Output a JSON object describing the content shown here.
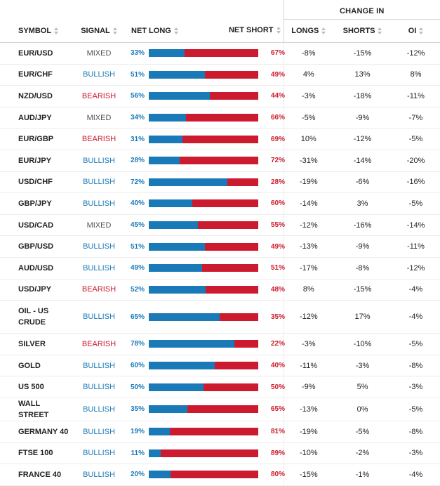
{
  "header": {
    "group_label": "CHANGE IN",
    "symbol": "SYMBOL",
    "signal": "SIGNAL",
    "net_long": "NET LONG",
    "net_short": "NET SHORT",
    "longs": "LONGS",
    "shorts": "SHORTS",
    "oi": "OI"
  },
  "colors": {
    "long": "#1a7ab8",
    "short": "#cc1b2e",
    "mixed": "#555555"
  },
  "rows": [
    {
      "symbol": "EUR/USD",
      "signal": "MIXED",
      "net_long": "33%",
      "net_short": "67%",
      "long_fraction": 0.33,
      "longs": "-8%",
      "shorts": "-15%",
      "oi": "-12%"
    },
    {
      "symbol": "EUR/CHF",
      "signal": "BULLISH",
      "net_long": "51%",
      "net_short": "49%",
      "long_fraction": 0.51,
      "longs": "4%",
      "shorts": "13%",
      "oi": "8%"
    },
    {
      "symbol": "NZD/USD",
      "signal": "BEARISH",
      "net_long": "56%",
      "net_short": "44%",
      "long_fraction": 0.56,
      "longs": "-3%",
      "shorts": "-18%",
      "oi": "-11%"
    },
    {
      "symbol": "AUD/JPY",
      "signal": "MIXED",
      "net_long": "34%",
      "net_short": "66%",
      "long_fraction": 0.34,
      "longs": "-5%",
      "shorts": "-9%",
      "oi": "-7%"
    },
    {
      "symbol": "EUR/GBP",
      "signal": "BEARISH",
      "net_long": "31%",
      "net_short": "69%",
      "long_fraction": 0.31,
      "longs": "10%",
      "shorts": "-12%",
      "oi": "-5%"
    },
    {
      "symbol": "EUR/JPY",
      "signal": "BULLISH",
      "net_long": "28%",
      "net_short": "72%",
      "long_fraction": 0.28,
      "longs": "-31%",
      "shorts": "-14%",
      "oi": "-20%"
    },
    {
      "symbol": "USD/CHF",
      "signal": "BULLISH",
      "net_long": "72%",
      "net_short": "28%",
      "long_fraction": 0.72,
      "longs": "-19%",
      "shorts": "-6%",
      "oi": "-16%"
    },
    {
      "symbol": "GBP/JPY",
      "signal": "BULLISH",
      "net_long": "40%",
      "net_short": "60%",
      "long_fraction": 0.4,
      "longs": "-14%",
      "shorts": "3%",
      "oi": "-5%"
    },
    {
      "symbol": "USD/CAD",
      "signal": "MIXED",
      "net_long": "45%",
      "net_short": "55%",
      "long_fraction": 0.45,
      "longs": "-12%",
      "shorts": "-16%",
      "oi": "-14%"
    },
    {
      "symbol": "GBP/USD",
      "signal": "BULLISH",
      "net_long": "51%",
      "net_short": "49%",
      "long_fraction": 0.51,
      "longs": "-13%",
      "shorts": "-9%",
      "oi": "-11%"
    },
    {
      "symbol": "AUD/USD",
      "signal": "BULLISH",
      "net_long": "49%",
      "net_short": "51%",
      "long_fraction": 0.49,
      "longs": "-17%",
      "shorts": "-8%",
      "oi": "-12%"
    },
    {
      "symbol": "USD/JPY",
      "signal": "BEARISH",
      "net_long": "52%",
      "net_short": "48%",
      "long_fraction": 0.52,
      "longs": "8%",
      "shorts": "-15%",
      "oi": "-4%"
    },
    {
      "symbol": "OIL - US CRUDE",
      "signal": "BULLISH",
      "net_long": "65%",
      "net_short": "35%",
      "long_fraction": 0.65,
      "longs": "-12%",
      "shorts": "17%",
      "oi": "-4%"
    },
    {
      "symbol": "SILVER",
      "signal": "BEARISH",
      "net_long": "78%",
      "net_short": "22%",
      "long_fraction": 0.78,
      "longs": "-3%",
      "shorts": "-10%",
      "oi": "-5%"
    },
    {
      "symbol": "GOLD",
      "signal": "BULLISH",
      "net_long": "60%",
      "net_short": "40%",
      "long_fraction": 0.6,
      "longs": "-11%",
      "shorts": "-3%",
      "oi": "-8%"
    },
    {
      "symbol": "US 500",
      "signal": "BULLISH",
      "net_long": "50%",
      "net_short": "50%",
      "long_fraction": 0.5,
      "longs": "-9%",
      "shorts": "5%",
      "oi": "-3%"
    },
    {
      "symbol": "WALL STREET",
      "signal": "BULLISH",
      "net_long": "35%",
      "net_short": "65%",
      "long_fraction": 0.35,
      "longs": "-13%",
      "shorts": "0%",
      "oi": "-5%"
    },
    {
      "symbol": "GERMANY 40",
      "signal": "BULLISH",
      "net_long": "19%",
      "net_short": "81%",
      "long_fraction": 0.19,
      "longs": "-19%",
      "shorts": "-5%",
      "oi": "-8%"
    },
    {
      "symbol": "FTSE 100",
      "signal": "BULLISH",
      "net_long": "11%",
      "net_short": "89%",
      "long_fraction": 0.11,
      "longs": "-10%",
      "shorts": "-2%",
      "oi": "-3%"
    },
    {
      "symbol": "FRANCE 40",
      "signal": "BULLISH",
      "net_long": "20%",
      "net_short": "80%",
      "long_fraction": 0.2,
      "longs": "-15%",
      "shorts": "-1%",
      "oi": "-4%"
    }
  ]
}
